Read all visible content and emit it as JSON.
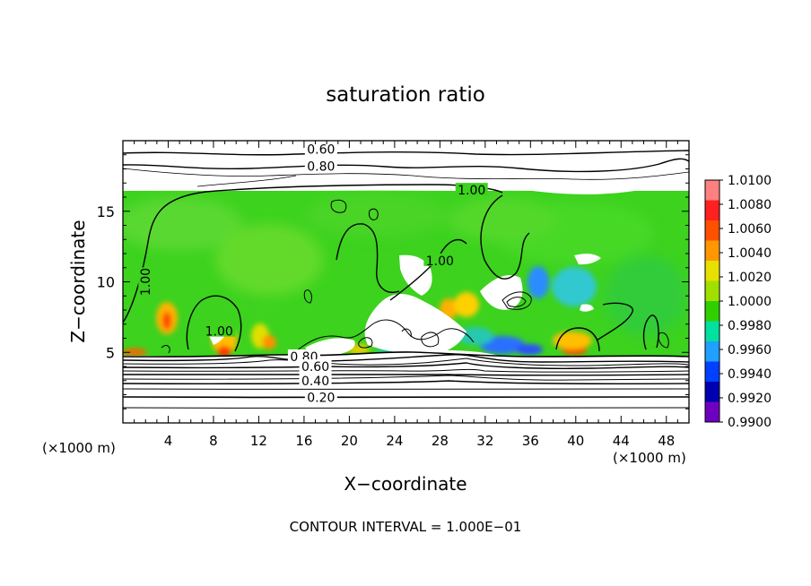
{
  "chart_data": {
    "type": "heatmap",
    "title": "saturation ratio",
    "xlabel": "X−coordinate",
    "ylabel": "Z−coordinate",
    "x_unit_left": "(×1000 m)",
    "x_unit_right": "(×1000 m)",
    "footer": "CONTOUR INTERVAL = 1.000E−01",
    "xlim": [
      0,
      50
    ],
    "ylim": [
      0,
      20
    ],
    "x_ticks": [
      4,
      8,
      12,
      16,
      20,
      24,
      28,
      32,
      36,
      40,
      44,
      48
    ],
    "y_ticks": [
      5,
      10,
      15
    ],
    "colorbar": {
      "labels": [
        "1.0100",
        "1.0080",
        "1.0060",
        "1.0040",
        "1.0020",
        "1.0000",
        "0.9980",
        "0.9960",
        "0.9940",
        "0.9920",
        "0.9900"
      ],
      "colors": [
        "#ff8080",
        "#ff2020",
        "#ff5000",
        "#ff9800",
        "#e8e000",
        "#a0e000",
        "#30d000",
        "#00e0a0",
        "#20a0ff",
        "#0040ff",
        "#0000b0",
        "#7000c0"
      ]
    },
    "contour_labels": [
      {
        "text": "0.60",
        "x": 17.5,
        "z": 19.4
      },
      {
        "text": "0.80",
        "x": 17.5,
        "z": 18.2
      },
      {
        "text": "1.00",
        "x": 30.8,
        "z": 16.5
      },
      {
        "text": "1.00",
        "x": 28.0,
        "z": 11.5
      },
      {
        "text": "1.00",
        "x": 2.0,
        "z": 10.0
      },
      {
        "text": "1.00",
        "x": 8.5,
        "z": 6.5
      },
      {
        "text": "0.80",
        "x": 16.0,
        "z": 4.7
      },
      {
        "text": "0.60",
        "x": 17.0,
        "z": 4.0
      },
      {
        "text": "0.40",
        "x": 17.0,
        "z": 3.0
      },
      {
        "text": "0.20",
        "x": 17.5,
        "z": 1.8
      }
    ]
  }
}
